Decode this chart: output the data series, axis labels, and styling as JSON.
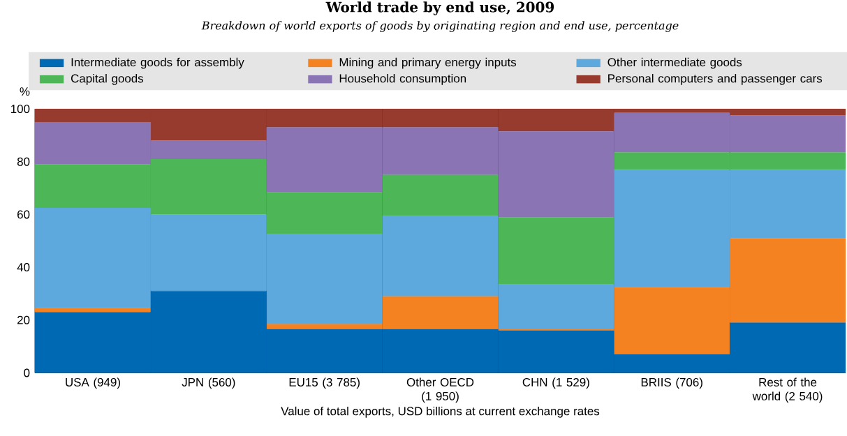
{
  "chart_data": {
    "type": "bar",
    "stacked": true,
    "title": "World trade by end use, 2009",
    "subtitle": "Breakdown of world exports of goods by originating region and end use, percentage",
    "xlabel": "Value of total exports, USD billions at current exchange rates",
    "ylabel": "%",
    "categories": [
      "USA (949)",
      "JPN (560)",
      "EU15 (3 785)",
      "Other OECD (1 950)",
      "CHN (1 529)",
      "BRIIS (706)",
      "Rest of the world (2 540)"
    ],
    "series": [
      {
        "name": "Intermediate goods for assembly",
        "color": "#0069b4",
        "values": [
          23,
          31,
          16.5,
          16.5,
          16,
          7,
          19
        ]
      },
      {
        "name": "Mining and primary energy inputs",
        "color": "#f58220",
        "values": [
          1.5,
          0,
          2,
          12.5,
          0.5,
          25.5,
          32
        ]
      },
      {
        "name": "Other intermediate goods",
        "color": "#5da8dc",
        "values": [
          38,
          29,
          34,
          30.5,
          17,
          44.5,
          26
        ]
      },
      {
        "name": "Capital goods",
        "color": "#4db757",
        "values": [
          16.5,
          21,
          16,
          15.5,
          25.5,
          6.5,
          6.5
        ]
      },
      {
        "name": "Household consumption",
        "color": "#8a74b4",
        "values": [
          16,
          7,
          24.5,
          18,
          32.5,
          15,
          14
        ]
      },
      {
        "name": "Personal computers and passenger cars",
        "color": "#963b2e",
        "values": [
          5,
          12,
          7,
          7,
          8.5,
          1.5,
          2.5
        ]
      }
    ],
    "ylim": [
      0,
      100
    ],
    "yticks": [
      0,
      20,
      40,
      60,
      80,
      100
    ],
    "legend": "top"
  }
}
